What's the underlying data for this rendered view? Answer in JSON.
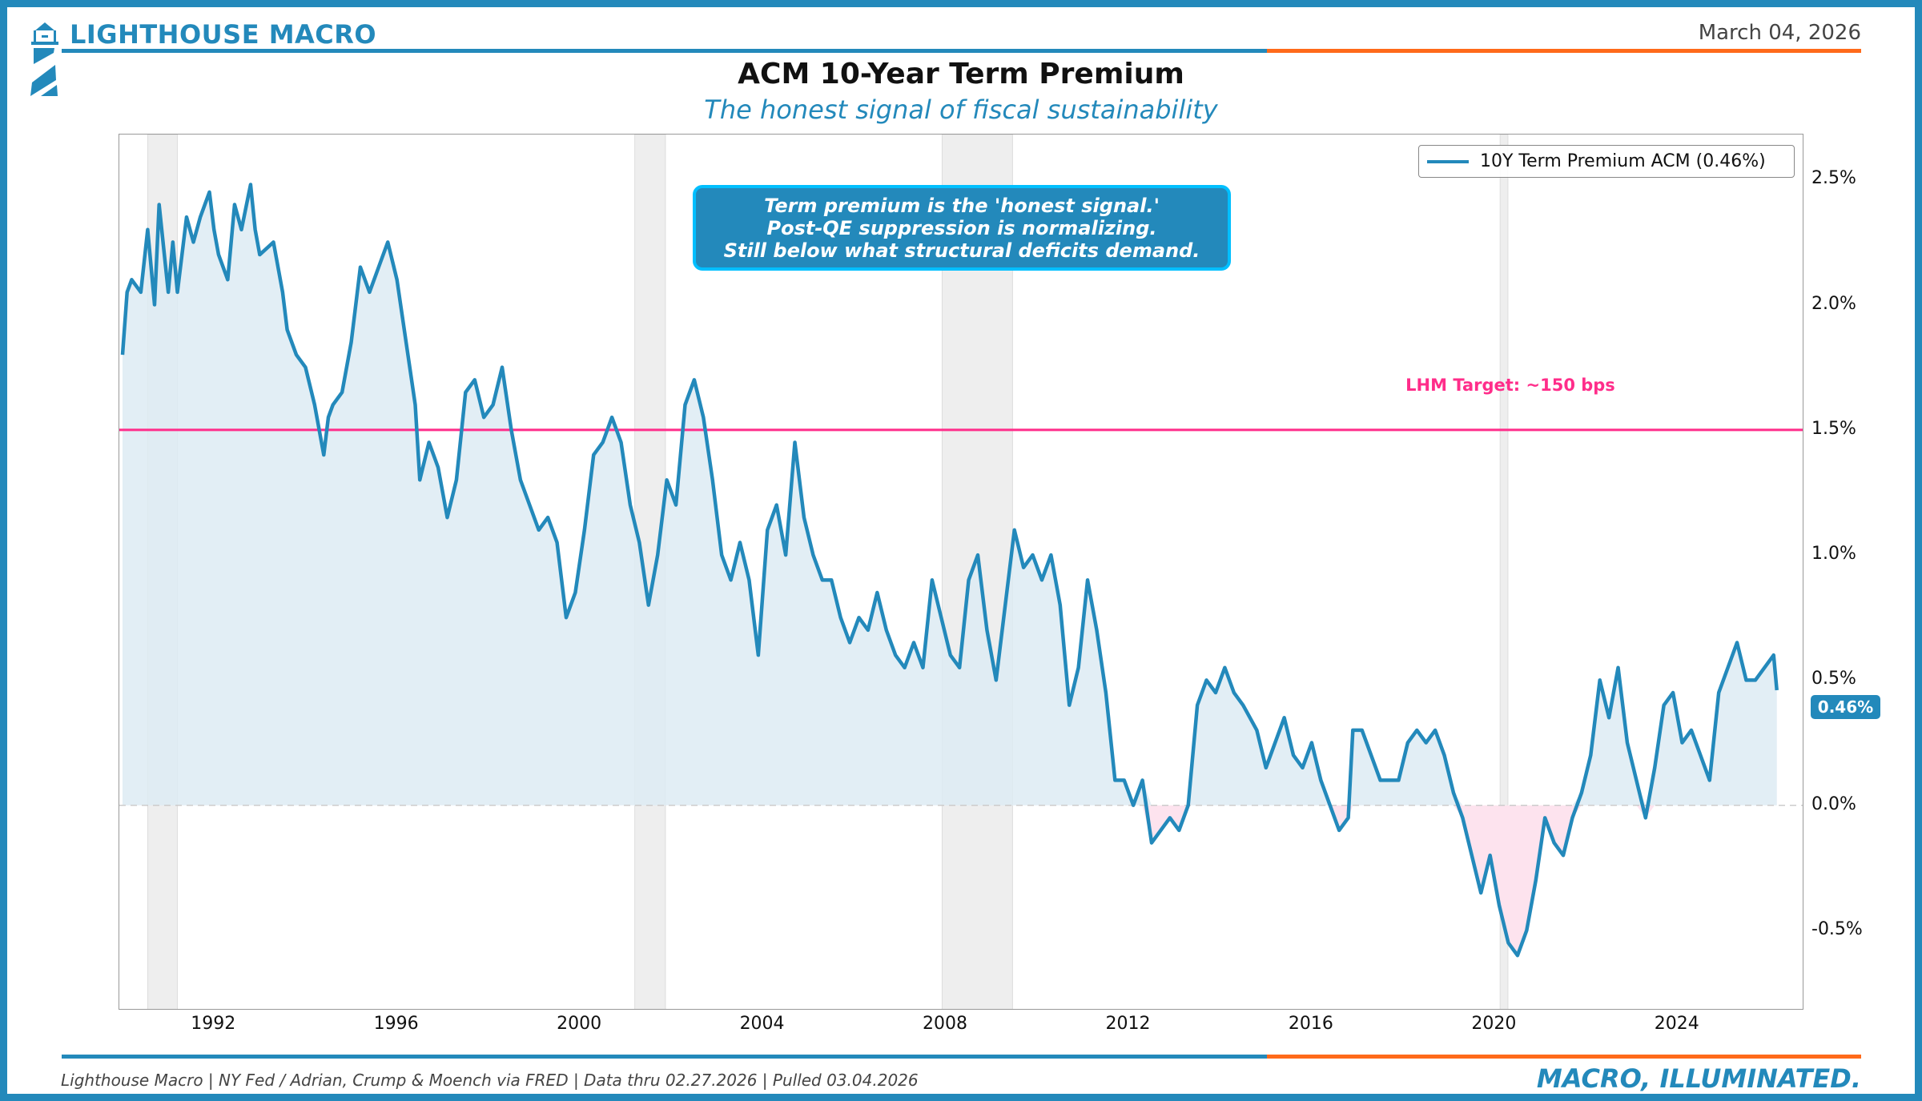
{
  "header": {
    "brand": "LIGHTHOUSE MACRO",
    "date": "March 04, 2026",
    "title": "ACM 10-Year Term Premium",
    "subtitle": "The honest signal of fiscal sustainability"
  },
  "footer": {
    "source": "Lighthouse Macro | NY Fed / Adrian, Crump & Moench via FRED | Data thru 02.27.2026 | Pulled 03.04.2026",
    "tagline": "MACRO, ILLUMINATED."
  },
  "colors": {
    "brand": "#2389BB",
    "accent": "#FF6A1A",
    "target": "#FF2D8A",
    "negative_fill": "#FDE3EE",
    "positive_fill": "#DDEBF3",
    "recession": "#EEEEEE"
  },
  "chart_data": {
    "type": "line",
    "title": "ACM 10-Year Term Premium",
    "subtitle": "The honest signal of fiscal sustainability",
    "xlabel": "",
    "ylabel": "",
    "xlim": [
      1989.93,
      2026.77
    ],
    "ylim": [
      -0.82,
      2.68
    ],
    "grid": false,
    "legend": {
      "placement": "top-right",
      "entries": [
        "10Y Term Premium ACM (0.46%)"
      ]
    },
    "x_ticks": [
      1992,
      1996,
      2000,
      2004,
      2008,
      2012,
      2016,
      2020,
      2024
    ],
    "x_tick_labels": [
      "1992",
      "1996",
      "2000",
      "2004",
      "2008",
      "2012",
      "2016",
      "2020",
      "2024"
    ],
    "y_ticks": [
      2.5,
      2.0,
      1.5,
      1.0,
      0.5,
      0.0,
      -0.5
    ],
    "y_tick_labels": [
      "2.5%",
      "2.0%",
      "1.5%",
      "1.0%",
      "0.5%",
      "0.0%",
      "-0.5%"
    ],
    "target": {
      "value": 1.5,
      "label": "LHM Target: ~150 bps"
    },
    "annotation": [
      "Term premium is the 'honest signal.'",
      "Post-QE suppression is normalizing.",
      "Still below what structural deficits demand."
    ],
    "last_value_label": "0.46%",
    "recessions": [
      [
        1990.55,
        1991.2
      ],
      [
        2001.2,
        2001.87
      ],
      [
        2007.92,
        2009.46
      ],
      [
        2020.12,
        2020.29
      ]
    ],
    "series": [
      {
        "name": "10Y Term Premium ACM (0.46%)",
        "x": [
          1990.0,
          1990.1,
          1990.2,
          1990.4,
          1990.55,
          1990.7,
          1990.8,
          1991.0,
          1991.1,
          1991.2,
          1991.4,
          1991.55,
          1991.7,
          1991.9,
          1992.0,
          1992.1,
          1992.3,
          1992.45,
          1992.6,
          1992.8,
          1992.9,
          1993.0,
          1993.3,
          1993.5,
          1993.6,
          1993.8,
          1994.0,
          1994.2,
          1994.4,
          1994.5,
          1994.6,
          1994.8,
          1995.0,
          1995.2,
          1995.4,
          1995.6,
          1995.8,
          1996.0,
          1996.2,
          1996.4,
          1996.5,
          1996.7,
          1996.9,
          1997.1,
          1997.3,
          1997.5,
          1997.7,
          1997.9,
          1998.1,
          1998.3,
          1998.5,
          1998.7,
          1998.9,
          1999.1,
          1999.3,
          1999.5,
          1999.7,
          1999.9,
          2000.1,
          2000.3,
          2000.5,
          2000.7,
          2000.9,
          2001.1,
          2001.3,
          2001.5,
          2001.7,
          2001.9,
          2002.1,
          2002.3,
          2002.5,
          2002.7,
          2002.9,
          2003.1,
          2003.3,
          2003.5,
          2003.7,
          2003.9,
          2004.1,
          2004.3,
          2004.5,
          2004.7,
          2004.9,
          2005.1,
          2005.3,
          2005.5,
          2005.7,
          2005.9,
          2006.1,
          2006.3,
          2006.5,
          2006.7,
          2006.9,
          2007.1,
          2007.3,
          2007.5,
          2007.7,
          2007.9,
          2008.1,
          2008.3,
          2008.5,
          2008.7,
          2008.9,
          2009.1,
          2009.3,
          2009.5,
          2009.7,
          2009.9,
          2010.1,
          2010.3,
          2010.5,
          2010.7,
          2010.9,
          2011.1,
          2011.3,
          2011.5,
          2011.7,
          2011.9,
          2012.1,
          2012.3,
          2012.5,
          2012.7,
          2012.9,
          2013.1,
          2013.3,
          2013.5,
          2013.7,
          2013.9,
          2014.1,
          2014.3,
          2014.5,
          2014.8,
          2015.0,
          2015.2,
          2015.4,
          2015.6,
          2015.8,
          2016.0,
          2016.2,
          2016.4,
          2016.6,
          2016.8,
          2016.9,
          2017.1,
          2017.3,
          2017.5,
          2017.7,
          2017.9,
          2018.1,
          2018.3,
          2018.5,
          2018.7,
          2018.9,
          2019.1,
          2019.3,
          2019.5,
          2019.7,
          2019.9,
          2020.1,
          2020.3,
          2020.5,
          2020.7,
          2020.9,
          2021.1,
          2021.3,
          2021.5,
          2021.7,
          2021.9,
          2022.1,
          2022.3,
          2022.5,
          2022.7,
          2022.9,
          2023.1,
          2023.3,
          2023.5,
          2023.7,
          2023.9,
          2024.1,
          2024.3,
          2024.5,
          2024.7,
          2024.9,
          2025.1,
          2025.3,
          2025.5,
          2025.7,
          2025.9,
          2026.1,
          2026.17
        ],
        "values": [
          1.8,
          2.05,
          2.1,
          2.05,
          2.3,
          2.0,
          2.4,
          2.05,
          2.25,
          2.05,
          2.35,
          2.25,
          2.35,
          2.45,
          2.3,
          2.2,
          2.1,
          2.4,
          2.3,
          2.48,
          2.3,
          2.2,
          2.25,
          2.05,
          1.9,
          1.8,
          1.75,
          1.6,
          1.4,
          1.55,
          1.6,
          1.65,
          1.85,
          2.15,
          2.05,
          2.15,
          2.25,
          2.1,
          1.85,
          1.6,
          1.3,
          1.45,
          1.35,
          1.15,
          1.3,
          1.65,
          1.7,
          1.55,
          1.6,
          1.75,
          1.5,
          1.3,
          1.2,
          1.1,
          1.15,
          1.05,
          0.75,
          0.85,
          1.1,
          1.4,
          1.45,
          1.55,
          1.45,
          1.2,
          1.05,
          0.8,
          1.0,
          1.3,
          1.2,
          1.6,
          1.7,
          1.55,
          1.3,
          1.0,
          0.9,
          1.05,
          0.9,
          0.6,
          1.1,
          1.2,
          1.0,
          1.45,
          1.15,
          1.0,
          0.9,
          0.9,
          0.75,
          0.65,
          0.75,
          0.7,
          0.85,
          0.7,
          0.6,
          0.55,
          0.65,
          0.55,
          0.9,
          0.75,
          0.6,
          0.55,
          0.9,
          1.0,
          0.7,
          0.5,
          0.8,
          1.1,
          0.95,
          1.0,
          0.9,
          1.0,
          0.8,
          0.4,
          0.55,
          0.9,
          0.7,
          0.45,
          0.1,
          0.1,
          0.0,
          0.1,
          -0.15,
          -0.1,
          -0.05,
          -0.1,
          0.0,
          0.4,
          0.5,
          0.45,
          0.55,
          0.45,
          0.4,
          0.3,
          0.15,
          0.25,
          0.35,
          0.2,
          0.15,
          0.25,
          0.1,
          0.0,
          -0.1,
          -0.05,
          0.3,
          0.3,
          0.2,
          0.1,
          0.1,
          0.1,
          0.25,
          0.3,
          0.25,
          0.3,
          0.2,
          0.05,
          -0.05,
          -0.2,
          -0.35,
          -0.2,
          -0.4,
          -0.55,
          -0.6,
          -0.5,
          -0.3,
          -0.05,
          -0.15,
          -0.2,
          -0.05,
          0.05,
          0.2,
          0.5,
          0.35,
          0.55,
          0.25,
          0.1,
          -0.05,
          0.15,
          0.4,
          0.45,
          0.25,
          0.3,
          0.2,
          0.1,
          0.45,
          0.55,
          0.65,
          0.5,
          0.5,
          0.55,
          0.6,
          0.46
        ]
      }
    ]
  }
}
